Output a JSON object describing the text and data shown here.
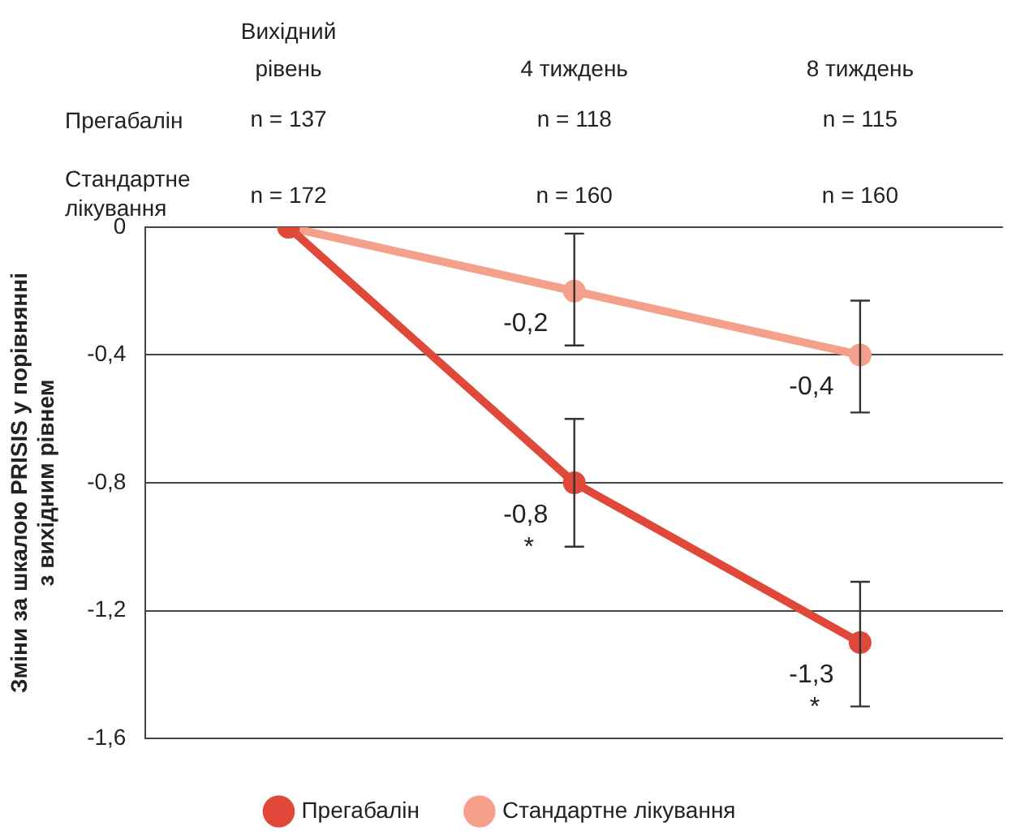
{
  "chart_data": {
    "type": "line",
    "categories": [
      "Вихідний рівень",
      "4 тиждень",
      "8 тиждень"
    ],
    "ylabel": "Зміни за шкалою PRISIS у порівнянні\nз вихідним рівнем",
    "ylim": [
      -1.6,
      0
    ],
    "yticks": [
      {
        "value": 0,
        "label": "0"
      },
      {
        "value": -0.4,
        "label": "-0,4"
      },
      {
        "value": -0.8,
        "label": "-0,8"
      },
      {
        "value": -1.2,
        "label": "-1,2"
      },
      {
        "value": -1.6,
        "label": "-1,6"
      }
    ],
    "grid": "y",
    "legend": "bottom",
    "marker": "circle",
    "line_style": "solid",
    "series": [
      {
        "name": "Прегабалін",
        "color": "#e0483a",
        "values": [
          0,
          -0.8,
          -1.3
        ],
        "errors": [
          null,
          [
            -1.0,
            -0.6
          ],
          [
            -1.5,
            -1.11
          ]
        ],
        "value_labels": [
          null,
          "-0,8",
          "-1,3"
        ]
      },
      {
        "name": "Стандартне лікування",
        "color": "#f5a08a",
        "values": [
          0,
          -0.2,
          -0.4
        ],
        "errors": [
          null,
          [
            -0.37,
            -0.02
          ],
          [
            -0.58,
            -0.23
          ]
        ],
        "value_labels": [
          null,
          "-0,2",
          "-0,4"
        ]
      }
    ],
    "annotations": [
      "Прегабалін",
      "n = 137",
      "n = 118",
      "n = 115",
      "Стандартне лікування",
      "n = 172",
      "n = 160",
      "n = 160",
      {
        "text": "*",
        "x": "4 тиждень",
        "y": -0.8
      },
      {
        "text": "*",
        "x": "8 тиждень",
        "y": -1.3
      }
    ]
  }
}
